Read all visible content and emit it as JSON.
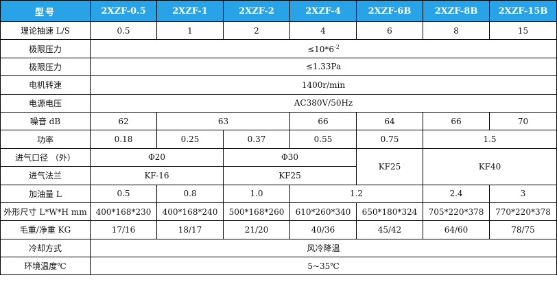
{
  "header": {
    "label": "型号",
    "models": [
      "2XZF-0.5",
      "2XZF-1",
      "2XZF-2",
      "2XZF-4",
      "2XZF-6B",
      "2XZF-8B",
      "2XZF-15B"
    ]
  },
  "rows": {
    "speed": {
      "label": "理论抽速 L/S",
      "values": [
        "0.5",
        "1",
        "2",
        "4",
        "6",
        "8",
        "15"
      ]
    },
    "ultimate1": {
      "label": "极限压力",
      "value_base": "≤10*6",
      "value_exp": "-2"
    },
    "ultimate2": {
      "label": "极限压力",
      "value": "≤1.33Pa"
    },
    "motor_speed": {
      "label": "电机转速",
      "value": "1400r/min"
    },
    "power_supply": {
      "label": "电源电压",
      "value": "AC380V/50Hz"
    },
    "noise": {
      "label": "噪音 dB",
      "values": [
        "62",
        "63",
        "66",
        "64",
        "66",
        "70"
      ]
    },
    "power": {
      "label": "功率",
      "values": [
        "0.18",
        "0.25",
        "0.37",
        "0.55",
        "0.75",
        "1.5"
      ]
    },
    "inlet_diameter": {
      "label": "进气口径 （外）",
      "values": [
        "Φ20",
        "Φ30"
      ]
    },
    "inlet_flange": {
      "label": "进气法兰",
      "values": [
        "KF-16",
        "KF25"
      ]
    },
    "flange_shared": [
      "KF25",
      "KF40"
    ],
    "oil": {
      "label": "加油量 L",
      "values": [
        "0.5",
        "0.8",
        "1.0",
        "1.2",
        "2.4",
        "3"
      ]
    },
    "dimensions": {
      "label": "外形尺寸 L*W*H mm",
      "values": [
        "400*168*230",
        "400*168*240",
        "500*168*260",
        "610*260*340",
        "650*180*324",
        "705*220*378",
        "770*220*378"
      ]
    },
    "weight": {
      "label": "毛重/净重 KG",
      "values": [
        "17/16",
        "18/17",
        "21/20",
        "40/36",
        "45/42",
        "64/60",
        "78/75"
      ]
    },
    "cooling": {
      "label": "冷却方式",
      "value": "风冷降温"
    },
    "ambient": {
      "label": "环境温度℃",
      "value": "5~35℃"
    }
  }
}
